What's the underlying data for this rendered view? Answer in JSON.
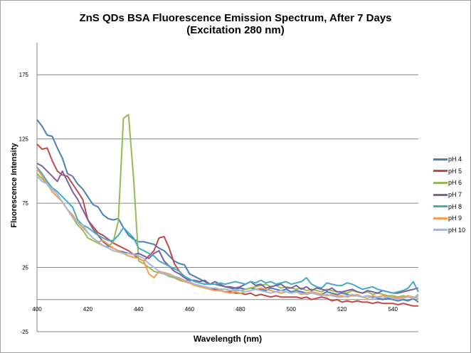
{
  "chart_data": {
    "type": "line",
    "title": "ZnS QDs BSA Fluorescence Emission Spectrum, After 7 Days",
    "subtitle": "(Excitation 280 nm)",
    "xlabel": "Wavelength (nm)",
    "ylabel": "Fluorescence Intensity",
    "xlim": [
      400,
      550
    ],
    "ylim": [
      -25,
      200
    ],
    "xticks": [
      400,
      420,
      440,
      460,
      480,
      500,
      520,
      540
    ],
    "yticks": [
      -25,
      25,
      75,
      125,
      175
    ],
    "grid": "horizontal",
    "legend": "right",
    "x_start": 400,
    "x_step": 2,
    "series": [
      {
        "name": "pH 4",
        "color": "#4a7ebb",
        "values": [
          140,
          135,
          128,
          127,
          118,
          110,
          98,
          96,
          90,
          86,
          80,
          74,
          72,
          66,
          63,
          62,
          63,
          56,
          50,
          47,
          45,
          45,
          44,
          43,
          40,
          38,
          34,
          30,
          28,
          27,
          20,
          18,
          16,
          14,
          12,
          12,
          11,
          10,
          9,
          8,
          9,
          8,
          9,
          8,
          8,
          7,
          9,
          8,
          7,
          8,
          6,
          7,
          6,
          5,
          6,
          5,
          4,
          6,
          5,
          4,
          5,
          4,
          3,
          3,
          2,
          3,
          2,
          1,
          0,
          1,
          0,
          -1,
          0,
          -1,
          1,
          -2
        ]
      },
      {
        "name": "pH 5",
        "color": "#be4b48",
        "values": [
          121,
          117,
          118,
          108,
          100,
          97,
          96,
          90,
          84,
          78,
          62,
          57,
          52,
          50,
          47,
          44,
          42,
          40,
          38,
          35,
          32,
          30,
          34,
          38,
          48,
          49,
          40,
          28,
          22,
          18,
          13,
          12,
          10,
          10,
          9,
          8,
          7,
          6,
          6,
          5,
          5,
          4,
          5,
          3,
          4,
          3,
          2,
          3,
          2,
          2,
          2,
          2,
          1,
          2,
          0,
          1,
          2,
          1,
          -1,
          0,
          -2,
          -1,
          -2,
          -1,
          -2,
          -2,
          -3,
          -2,
          -3,
          -3,
          -3,
          -4,
          -3,
          -4,
          -5,
          -5
        ]
      },
      {
        "name": "pH 6",
        "color": "#98b954",
        "values": [
          98,
          94,
          90,
          84,
          80,
          76,
          70,
          64,
          58,
          54,
          48,
          46,
          44,
          42,
          41,
          45,
          61,
          141,
          144,
          94,
          30,
          28,
          25,
          22,
          21,
          20,
          18,
          17,
          15,
          14,
          13,
          12,
          11,
          10,
          9,
          9,
          8,
          8,
          7,
          7,
          7,
          8,
          9,
          10,
          11,
          12,
          10,
          11,
          9,
          10,
          9,
          8,
          9,
          7,
          8,
          7,
          6,
          8,
          7,
          6,
          6,
          5,
          7,
          6,
          5,
          6,
          4,
          5,
          4,
          3,
          3,
          2,
          3,
          2,
          1,
          4
        ]
      },
      {
        "name": "pH 7",
        "color": "#7d60a0",
        "values": [
          106,
          104,
          100,
          96,
          92,
          100,
          92,
          84,
          78,
          70,
          62,
          55,
          50,
          45,
          42,
          40,
          38,
          37,
          36,
          35,
          36,
          34,
          32,
          36,
          38,
          30,
          26,
          22,
          20,
          17,
          15,
          15,
          14,
          15,
          12,
          14,
          12,
          10,
          10,
          9,
          10,
          12,
          14,
          11,
          12,
          9,
          10,
          11,
          12,
          9,
          9,
          11,
          8,
          10,
          7,
          9,
          8,
          7,
          9,
          6,
          6,
          7,
          8,
          6,
          5,
          7,
          6,
          5,
          7,
          6,
          5,
          5,
          6,
          7,
          8,
          9
        ]
      },
      {
        "name": "pH 8",
        "color": "#46aac5",
        "values": [
          103,
          98,
          92,
          87,
          84,
          80,
          76,
          72,
          62,
          58,
          56,
          53,
          50,
          48,
          46,
          46,
          50,
          56,
          52,
          48,
          40,
          38,
          36,
          34,
          30,
          28,
          26,
          24,
          22,
          18,
          16,
          14,
          13,
          12,
          12,
          12,
          13,
          12,
          13,
          14,
          13,
          12,
          14,
          13,
          15,
          13,
          14,
          12,
          13,
          14,
          12,
          13,
          14,
          17,
          12,
          10,
          9,
          13,
          12,
          11,
          11,
          13,
          12,
          10,
          8,
          9,
          10,
          8,
          7,
          6,
          5,
          6,
          7,
          9,
          14,
          6
        ]
      },
      {
        "name": "pH 9",
        "color": "#f59d56",
        "values": [
          102,
          96,
          90,
          84,
          80,
          76,
          70,
          66,
          60,
          56,
          52,
          48,
          45,
          46,
          43,
          40,
          38,
          36,
          34,
          33,
          32,
          30,
          20,
          17,
          22,
          21,
          20,
          18,
          16,
          14,
          13,
          11,
          10,
          9,
          8,
          7,
          7,
          6,
          5,
          6,
          5,
          6,
          7,
          8,
          9,
          8,
          7,
          6,
          5,
          6,
          5,
          6,
          4,
          5,
          6,
          5,
          4,
          3,
          4,
          3,
          3,
          2,
          3,
          4,
          2,
          1,
          3,
          2,
          3,
          2,
          2,
          1,
          2,
          3,
          2,
          1
        ]
      },
      {
        "name": "pH 10",
        "color": "#a7b9da",
        "values": [
          96,
          92,
          90,
          86,
          82,
          76,
          70,
          64,
          60,
          58,
          52,
          48,
          45,
          42,
          40,
          38,
          37,
          36,
          36,
          35,
          34,
          32,
          28,
          25,
          22,
          20,
          19,
          18,
          17,
          15,
          14,
          12,
          11,
          10,
          9,
          9,
          8,
          8,
          7,
          8,
          7,
          6,
          7,
          8,
          7,
          6,
          5,
          6,
          7,
          6,
          5,
          6,
          5,
          4,
          5,
          4,
          3,
          4,
          3,
          2,
          2,
          3,
          4,
          3,
          2,
          3,
          1,
          2,
          1,
          2,
          1,
          0,
          1,
          2,
          1,
          3
        ]
      }
    ]
  }
}
